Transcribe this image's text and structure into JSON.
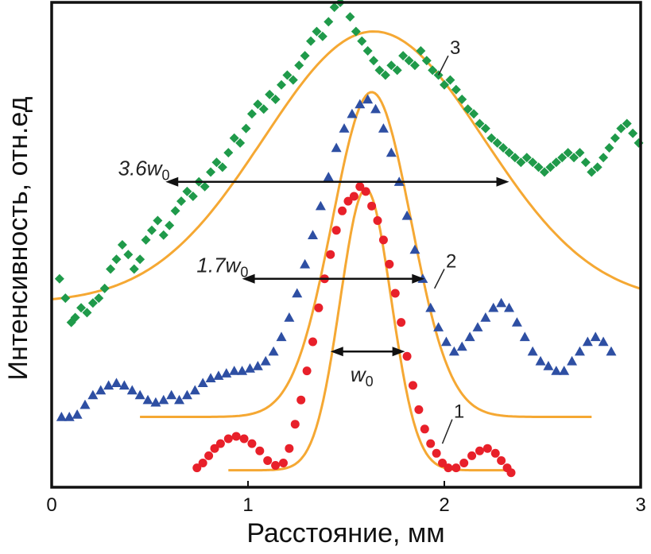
{
  "chart_data": {
    "type": "scatter",
    "xlabel": "Расстояние, мм",
    "ylabel": "Интенсивность, отн.ед",
    "xlim": [
      0,
      3
    ],
    "ylim": [
      0,
      1
    ],
    "x_ticks": [
      "0",
      "1",
      "2",
      "3"
    ],
    "grid": false,
    "legend": "none",
    "series": [
      {
        "label": "1",
        "marker": "circle",
        "color": "#e8202a",
        "fit_color": "#f5a833",
        "fit": {
          "center": 1.6,
          "sigma": 0.13,
          "baseline": 0.035,
          "amplitude": 0.58,
          "x_range": [
            0.9,
            2.32
          ]
        },
        "points": [
          [
            0.74,
            0.04
          ],
          [
            0.77,
            0.05
          ],
          [
            0.8,
            0.065
          ],
          [
            0.83,
            0.08
          ],
          [
            0.86,
            0.09
          ],
          [
            0.9,
            0.1
          ],
          [
            0.94,
            0.105
          ],
          [
            0.98,
            0.1
          ],
          [
            1.02,
            0.09
          ],
          [
            1.06,
            0.075
          ],
          [
            1.1,
            0.055
          ],
          [
            1.14,
            0.045
          ],
          [
            1.18,
            0.05
          ],
          [
            1.21,
            0.08
          ],
          [
            1.24,
            0.13
          ],
          [
            1.27,
            0.18
          ],
          [
            1.3,
            0.24
          ],
          [
            1.33,
            0.3
          ],
          [
            1.36,
            0.37
          ],
          [
            1.39,
            0.43
          ],
          [
            1.42,
            0.48
          ],
          [
            1.45,
            0.53
          ],
          [
            1.48,
            0.57
          ],
          [
            1.51,
            0.59
          ],
          [
            1.54,
            0.6
          ],
          [
            1.57,
            0.62
          ],
          [
            1.6,
            0.61
          ],
          [
            1.63,
            0.58
          ],
          [
            1.66,
            0.55
          ],
          [
            1.69,
            0.51
          ],
          [
            1.72,
            0.46
          ],
          [
            1.75,
            0.4
          ],
          [
            1.78,
            0.34
          ],
          [
            1.81,
            0.27
          ],
          [
            1.84,
            0.21
          ],
          [
            1.87,
            0.16
          ],
          [
            1.9,
            0.12
          ],
          [
            1.93,
            0.09
          ],
          [
            1.96,
            0.07
          ],
          [
            1.99,
            0.05
          ],
          [
            2.02,
            0.04
          ],
          [
            2.06,
            0.04
          ],
          [
            2.1,
            0.05
          ],
          [
            2.14,
            0.065
          ],
          [
            2.18,
            0.075
          ],
          [
            2.22,
            0.08
          ],
          [
            2.26,
            0.07
          ],
          [
            2.29,
            0.055
          ],
          [
            2.32,
            0.04
          ],
          [
            2.34,
            0.03
          ]
        ]
      },
      {
        "label": "2",
        "marker": "triangle",
        "color": "#2e4fa3",
        "fit_color": "#f5a833",
        "fit": {
          "center": 1.63,
          "sigma": 0.2,
          "baseline": 0.145,
          "amplitude": 0.67,
          "x_range": [
            0.45,
            2.75
          ]
        },
        "points": [
          [
            0.05,
            0.145
          ],
          [
            0.09,
            0.145
          ],
          [
            0.13,
            0.15
          ],
          [
            0.17,
            0.17
          ],
          [
            0.21,
            0.19
          ],
          [
            0.25,
            0.2
          ],
          [
            0.29,
            0.21
          ],
          [
            0.33,
            0.215
          ],
          [
            0.37,
            0.21
          ],
          [
            0.41,
            0.2
          ],
          [
            0.45,
            0.19
          ],
          [
            0.49,
            0.18
          ],
          [
            0.53,
            0.175
          ],
          [
            0.57,
            0.18
          ],
          [
            0.61,
            0.19
          ],
          [
            0.65,
            0.18
          ],
          [
            0.69,
            0.19
          ],
          [
            0.73,
            0.2
          ],
          [
            0.77,
            0.215
          ],
          [
            0.81,
            0.225
          ],
          [
            0.85,
            0.23
          ],
          [
            0.89,
            0.235
          ],
          [
            0.93,
            0.24
          ],
          [
            0.97,
            0.24
          ],
          [
            1.01,
            0.245
          ],
          [
            1.05,
            0.25
          ],
          [
            1.09,
            0.26
          ],
          [
            1.13,
            0.28
          ],
          [
            1.17,
            0.31
          ],
          [
            1.21,
            0.35
          ],
          [
            1.25,
            0.4
          ],
          [
            1.29,
            0.46
          ],
          [
            1.33,
            0.52
          ],
          [
            1.37,
            0.58
          ],
          [
            1.41,
            0.64
          ],
          [
            1.45,
            0.7
          ],
          [
            1.49,
            0.74
          ],
          [
            1.53,
            0.77
          ],
          [
            1.57,
            0.79
          ],
          [
            1.61,
            0.8
          ],
          [
            1.65,
            0.78
          ],
          [
            1.69,
            0.74
          ],
          [
            1.73,
            0.69
          ],
          [
            1.77,
            0.63
          ],
          [
            1.81,
            0.56
          ],
          [
            1.85,
            0.49
          ],
          [
            1.89,
            0.43
          ],
          [
            1.93,
            0.37
          ],
          [
            1.97,
            0.33
          ],
          [
            2.01,
            0.3
          ],
          [
            2.05,
            0.28
          ],
          [
            2.09,
            0.29
          ],
          [
            2.13,
            0.31
          ],
          [
            2.17,
            0.33
          ],
          [
            2.21,
            0.35
          ],
          [
            2.25,
            0.37
          ],
          [
            2.29,
            0.38
          ],
          [
            2.33,
            0.37
          ],
          [
            2.37,
            0.34
          ],
          [
            2.41,
            0.31
          ],
          [
            2.45,
            0.28
          ],
          [
            2.49,
            0.26
          ],
          [
            2.53,
            0.25
          ],
          [
            2.57,
            0.24
          ],
          [
            2.61,
            0.24
          ],
          [
            2.65,
            0.26
          ],
          [
            2.69,
            0.28
          ],
          [
            2.73,
            0.3
          ],
          [
            2.77,
            0.31
          ],
          [
            2.81,
            0.3
          ],
          [
            2.85,
            0.28
          ]
        ]
      },
      {
        "label": "3",
        "marker": "diamond",
        "color": "#1f9a4a",
        "fit_color": "#f5a833",
        "fit": {
          "center": 1.64,
          "sigma": 0.56,
          "baseline": 0.38,
          "amplitude": 0.56,
          "x_range": [
            0.0,
            3.0
          ]
        },
        "points": [
          [
            0.04,
            0.43
          ],
          [
            0.07,
            0.39
          ],
          [
            0.1,
            0.34
          ],
          [
            0.12,
            0.35
          ],
          [
            0.15,
            0.37
          ],
          [
            0.18,
            0.36
          ],
          [
            0.21,
            0.38
          ],
          [
            0.24,
            0.39
          ],
          [
            0.27,
            0.41
          ],
          [
            0.3,
            0.45
          ],
          [
            0.33,
            0.47
          ],
          [
            0.36,
            0.5
          ],
          [
            0.39,
            0.48
          ],
          [
            0.42,
            0.45
          ],
          [
            0.45,
            0.47
          ],
          [
            0.48,
            0.51
          ],
          [
            0.51,
            0.53
          ],
          [
            0.54,
            0.55
          ],
          [
            0.57,
            0.52
          ],
          [
            0.6,
            0.54
          ],
          [
            0.63,
            0.57
          ],
          [
            0.66,
            0.59
          ],
          [
            0.69,
            0.61
          ],
          [
            0.72,
            0.6
          ],
          [
            0.75,
            0.63
          ],
          [
            0.78,
            0.62
          ],
          [
            0.81,
            0.65
          ],
          [
            0.84,
            0.67
          ],
          [
            0.87,
            0.66
          ],
          [
            0.9,
            0.69
          ],
          [
            0.93,
            0.72
          ],
          [
            0.96,
            0.71
          ],
          [
            0.99,
            0.74
          ],
          [
            1.02,
            0.77
          ],
          [
            1.05,
            0.79
          ],
          [
            1.08,
            0.78
          ],
          [
            1.11,
            0.81
          ],
          [
            1.14,
            0.8
          ],
          [
            1.17,
            0.83
          ],
          [
            1.2,
            0.85
          ],
          [
            1.23,
            0.84
          ],
          [
            1.26,
            0.87
          ],
          [
            1.29,
            0.89
          ],
          [
            1.32,
            0.92
          ],
          [
            1.35,
            0.94
          ],
          [
            1.38,
            0.93
          ],
          [
            1.41,
            0.96
          ],
          [
            1.44,
            0.99
          ],
          [
            1.47,
            1.0
          ],
          [
            1.5,
            1.02
          ],
          [
            1.52,
            0.97
          ],
          [
            1.55,
            0.94
          ],
          [
            1.58,
            0.92
          ],
          [
            1.61,
            0.9
          ],
          [
            1.64,
            0.88
          ],
          [
            1.67,
            0.86
          ],
          [
            1.7,
            0.85
          ],
          [
            1.73,
            0.87
          ],
          [
            1.76,
            0.86
          ],
          [
            1.79,
            0.89
          ],
          [
            1.82,
            0.88
          ],
          [
            1.85,
            0.87
          ],
          [
            1.88,
            0.9
          ],
          [
            1.91,
            0.88
          ],
          [
            1.94,
            0.86
          ],
          [
            1.97,
            0.85
          ],
          [
            2.0,
            0.83
          ],
          [
            2.03,
            0.84
          ],
          [
            2.06,
            0.82
          ],
          [
            2.09,
            0.8
          ],
          [
            2.12,
            0.78
          ],
          [
            2.15,
            0.77
          ],
          [
            2.18,
            0.75
          ],
          [
            2.21,
            0.74
          ],
          [
            2.24,
            0.72
          ],
          [
            2.27,
            0.71
          ],
          [
            2.3,
            0.7
          ],
          [
            2.33,
            0.69
          ],
          [
            2.36,
            0.68
          ],
          [
            2.39,
            0.67
          ],
          [
            2.42,
            0.68
          ],
          [
            2.45,
            0.67
          ],
          [
            2.48,
            0.66
          ],
          [
            2.51,
            0.65
          ],
          [
            2.54,
            0.66
          ],
          [
            2.57,
            0.67
          ],
          [
            2.6,
            0.68
          ],
          [
            2.63,
            0.69
          ],
          [
            2.66,
            0.68
          ],
          [
            2.69,
            0.69
          ],
          [
            2.72,
            0.67
          ],
          [
            2.75,
            0.65
          ],
          [
            2.78,
            0.66
          ],
          [
            2.81,
            0.68
          ],
          [
            2.84,
            0.7
          ],
          [
            2.87,
            0.72
          ],
          [
            2.9,
            0.74
          ],
          [
            2.93,
            0.75
          ],
          [
            2.96,
            0.73
          ],
          [
            2.99,
            0.71
          ]
        ]
      }
    ],
    "annotations": [
      {
        "text": "3.6w",
        "subscript": "0",
        "arrow_y": 0.63,
        "arrow_x": [
          0.58,
          2.33
        ],
        "label_x": 0.47
      },
      {
        "text": "1.7w",
        "subscript": "0",
        "arrow_y": 0.43,
        "arrow_x": [
          0.97,
          1.9
        ],
        "label_x": 0.87
      },
      {
        "text": "w",
        "subscript": "0",
        "arrow_y": 0.28,
        "arrow_x": [
          1.42,
          1.8
        ],
        "label_x": 1.58
      }
    ]
  }
}
